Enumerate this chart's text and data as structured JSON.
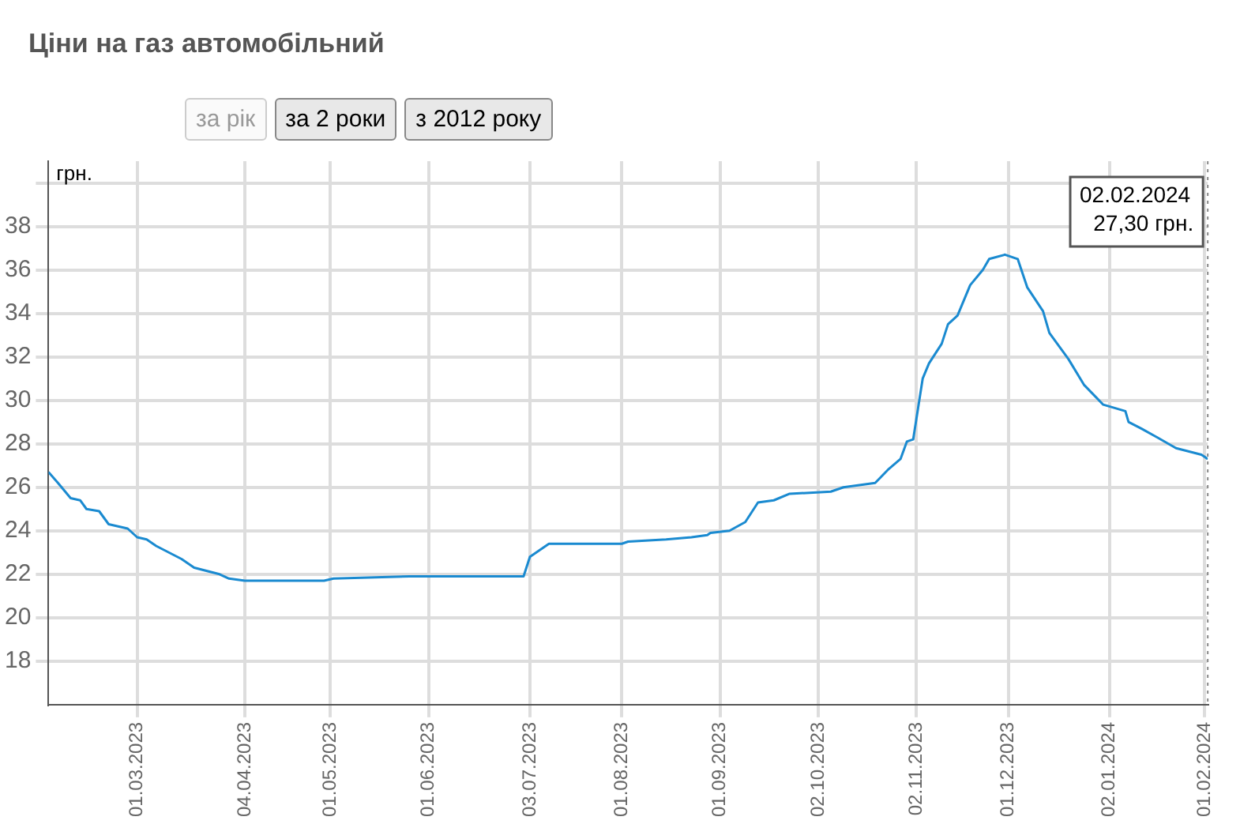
{
  "chart_data": {
    "type": "line",
    "title": "Ціни на газ автомобільний",
    "ylabel": "грн.",
    "x": [
      "2023-02-01",
      "2023-02-04",
      "2023-02-08",
      "2023-02-11",
      "2023-02-13",
      "2023-02-17",
      "2023-02-20",
      "2023-02-26",
      "2023-03-01",
      "2023-03-04",
      "2023-03-07",
      "2023-03-15",
      "2023-03-19",
      "2023-03-27",
      "2023-03-30",
      "2023-04-04",
      "2023-04-13",
      "2023-04-29",
      "2023-05-02",
      "2023-05-26",
      "2023-06-01",
      "2023-06-24",
      "2023-07-01",
      "2023-07-03",
      "2023-07-06",
      "2023-07-09",
      "2023-07-16",
      "2023-08-01",
      "2023-08-03",
      "2023-08-15",
      "2023-08-23",
      "2023-08-28",
      "2023-08-29",
      "2023-09-04",
      "2023-09-09",
      "2023-09-13",
      "2023-09-18",
      "2023-09-23",
      "2023-10-06",
      "2023-10-10",
      "2023-10-15",
      "2023-10-20",
      "2023-10-24",
      "2023-10-28",
      "2023-10-30",
      "2023-11-01",
      "2023-11-04",
      "2023-11-06",
      "2023-11-10",
      "2023-11-12",
      "2023-11-15",
      "2023-11-19",
      "2023-11-23",
      "2023-11-25",
      "2023-11-30",
      "2023-12-04",
      "2023-12-07",
      "2023-12-12",
      "2023-12-14",
      "2023-12-18",
      "2023-12-20",
      "2023-12-25",
      "2023-12-31",
      "2024-01-07",
      "2024-01-08",
      "2024-01-12",
      "2024-01-17",
      "2024-01-23",
      "2024-01-31",
      "2024-02-02"
    ],
    "series": [
      {
        "color": "#1a8ad0",
        "values": [
          26.7,
          26.2,
          25.5,
          25.4,
          25.0,
          24.9,
          24.3,
          24.1,
          23.7,
          23.6,
          23.3,
          22.7,
          22.3,
          22.0,
          21.8,
          21.7,
          21.7,
          21.7,
          21.8,
          21.9,
          21.9,
          21.9,
          21.9,
          22.8,
          23.1,
          23.4,
          23.4,
          23.4,
          23.5,
          23.6,
          23.7,
          23.8,
          23.9,
          24.0,
          24.4,
          25.3,
          25.4,
          25.7,
          25.8,
          26.0,
          26.1,
          26.2,
          26.8,
          27.3,
          28.1,
          28.2,
          31.0,
          31.7,
          32.6,
          33.5,
          33.9,
          35.3,
          36.0,
          36.5,
          36.7,
          36.5,
          35.2,
          34.1,
          33.1,
          32.3,
          31.9,
          30.7,
          29.8,
          29.5,
          29.0,
          28.7,
          28.3,
          27.8,
          27.5,
          27.3
        ]
      }
    ],
    "xlim": [
      "2023-02-01",
      "2024-02-02"
    ],
    "xticks": [
      {
        "value": "2023-03-01",
        "label": "01.03.2023"
      },
      {
        "value": "2023-04-04",
        "label": "04.04.2023"
      },
      {
        "value": "2023-05-01",
        "label": "01.05.2023"
      },
      {
        "value": "2023-06-01",
        "label": "01.06.2023"
      },
      {
        "value": "2023-07-03",
        "label": "03.07.2023"
      },
      {
        "value": "2023-08-01",
        "label": "01.08.2023"
      },
      {
        "value": "2023-09-01",
        "label": "01.09.2023"
      },
      {
        "value": "2023-10-02",
        "label": "02.10.2023"
      },
      {
        "value": "2023-11-02",
        "label": "02.11.2023"
      },
      {
        "value": "2023-12-01",
        "label": "01.12.2023"
      },
      {
        "value": "2024-01-02",
        "label": "02.01.2024"
      },
      {
        "value": "2024-02-01",
        "label": "01.02.2024"
      }
    ],
    "ylim": [
      16,
      41
    ],
    "yticks": [
      18,
      20,
      22,
      24,
      26,
      28,
      30,
      32,
      34,
      36,
      38,
      {
        "value": 40,
        "label": null
      }
    ],
    "grid": true,
    "legend": false,
    "marker": "none",
    "line_style": "solid",
    "annotations": [
      "за рік",
      "за 2 роки",
      "з 2012 року",
      "02.02.2024\n27,30 грн."
    ],
    "ref_lines": [
      {
        "axis": "x",
        "value": "2024-02-02",
        "color": "#888888",
        "line_style": "dotted"
      }
    ]
  }
}
